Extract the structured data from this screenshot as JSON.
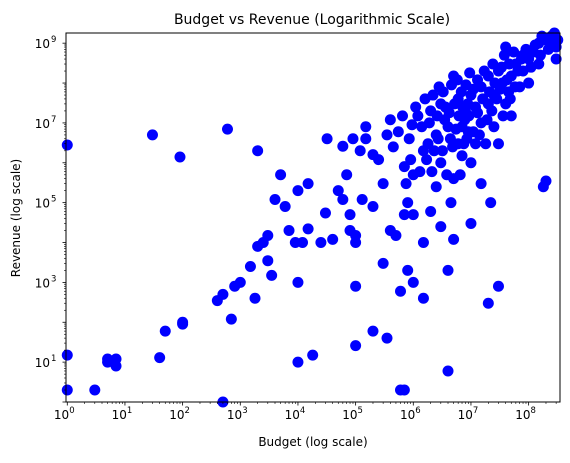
{
  "chart_data": {
    "type": "scatter",
    "title": "Budget vs Revenue (Logarithmic Scale)",
    "xlabel": "Budget (log scale)",
    "ylabel": "Revenue (log scale)",
    "xscale": "log",
    "yscale": "log",
    "xlim": [
      0.95,
      350000000
    ],
    "ylim": [
      1.0,
      1800000000
    ],
    "grid": false,
    "legend": "none",
    "marker_color": "#0000ff",
    "x_ticks": [
      {
        "base": "10",
        "exp": "0",
        "value": 1
      },
      {
        "base": "10",
        "exp": "1",
        "value": 10
      },
      {
        "base": "10",
        "exp": "2",
        "value": 100
      },
      {
        "base": "10",
        "exp": "3",
        "value": 1000
      },
      {
        "base": "10",
        "exp": "4",
        "value": 10000
      },
      {
        "base": "10",
        "exp": "5",
        "value": 100000
      },
      {
        "base": "10",
        "exp": "6",
        "value": 1000000
      },
      {
        "base": "10",
        "exp": "7",
        "value": 10000000
      },
      {
        "base": "10",
        "exp": "8",
        "value": 100000000
      }
    ],
    "y_ticks": [
      {
        "base": "10",
        "exp": "1",
        "value": 10
      },
      {
        "base": "10",
        "exp": "3",
        "value": 1000
      },
      {
        "base": "10",
        "exp": "5",
        "value": 100000
      },
      {
        "base": "10",
        "exp": "7",
        "value": 10000000
      },
      {
        "base": "10",
        "exp": "9",
        "value": 1000000000
      }
    ],
    "points": [
      [
        1,
        2800000.0
      ],
      [
        1,
        15
      ],
      [
        1,
        2
      ],
      [
        3,
        2
      ],
      [
        5,
        12
      ],
      [
        5,
        10
      ],
      [
        7,
        12
      ],
      [
        7,
        8
      ],
      [
        30,
        5000000.0
      ],
      [
        40,
        13
      ],
      [
        50,
        60
      ],
      [
        90,
        1400000.0
      ],
      [
        100,
        100
      ],
      [
        100,
        90
      ],
      [
        400,
        350
      ],
      [
        500,
        500
      ],
      [
        500,
        1
      ],
      [
        600,
        7000000.0
      ],
      [
        700,
        120
      ],
      [
        800,
        800
      ],
      [
        1000,
        1000
      ],
      [
        1500,
        2500
      ],
      [
        1800,
        400
      ],
      [
        2000,
        8000
      ],
      [
        2000,
        2000000.0
      ],
      [
        2500,
        10000.0
      ],
      [
        3000,
        15000.0
      ],
      [
        3000,
        3500
      ],
      [
        3500,
        1500
      ],
      [
        4000,
        120000.0
      ],
      [
        5000,
        500000.0
      ],
      [
        6000,
        80000.0
      ],
      [
        7000,
        20000.0
      ],
      [
        9000,
        10000.0
      ],
      [
        10000,
        1000
      ],
      [
        10000,
        10
      ],
      [
        10000,
        200000.0
      ],
      [
        12000,
        10000.0
      ],
      [
        15000,
        22000.0
      ],
      [
        15000,
        300000.0
      ],
      [
        18000,
        15
      ],
      [
        25000,
        10000.0
      ],
      [
        30000,
        55000.0
      ],
      [
        32000,
        4000000.0
      ],
      [
        40000,
        12000.0
      ],
      [
        50000,
        200000.0
      ],
      [
        60000,
        2600000.0
      ],
      [
        80000,
        50000.0
      ],
      [
        80000,
        20000.0
      ],
      [
        100000,
        15000.0
      ],
      [
        100000,
        10000.0
      ],
      [
        100000,
        800
      ],
      [
        100000,
        26
      ],
      [
        130000,
        120000.0
      ],
      [
        150000,
        4000000.0
      ],
      [
        150000,
        8000000.0
      ],
      [
        200000,
        80000.0
      ],
      [
        200000,
        60
      ],
      [
        200000,
        1600000.0
      ],
      [
        300000,
        3000
      ],
      [
        300000,
        300000.0
      ],
      [
        350000,
        40
      ],
      [
        400000,
        12000000.0
      ],
      [
        400000,
        20000.0
      ],
      [
        500000,
        15000.0
      ],
      [
        600000,
        600
      ],
      [
        600000,
        2
      ],
      [
        700000,
        2
      ],
      [
        700000,
        50000.0
      ],
      [
        700000,
        800000.0
      ],
      [
        800000,
        2000
      ],
      [
        800000,
        100000.0
      ],
      [
        900000,
        1200000.0
      ],
      [
        1000000,
        1000
      ],
      [
        1000000,
        50000.0
      ],
      [
        1000000,
        500000.0
      ],
      [
        1200000,
        15000000.0
      ],
      [
        1500000,
        400
      ],
      [
        1500000,
        10000.0
      ],
      [
        1500000,
        2000000.0
      ],
      [
        1800000,
        3000000.0
      ],
      [
        2000000,
        60000.0
      ],
      [
        2000000,
        20000000.0
      ],
      [
        2500000,
        5000000.0
      ],
      [
        2500000,
        250000.0
      ],
      [
        3000000,
        25000.0
      ],
      [
        3000000,
        1000000.0
      ],
      [
        3000000,
        30000000.0
      ],
      [
        3500000,
        12000000.0
      ],
      [
        4000000,
        6
      ],
      [
        4000000,
        2000
      ],
      [
        4000000,
        8000000.0
      ],
      [
        4500000,
        100000.0
      ],
      [
        5000000,
        12000.0
      ],
      [
        5000000,
        400000.0
      ],
      [
        5000000,
        150000000.0
      ],
      [
        6000000,
        3000000.0
      ],
      [
        6000000,
        40000000.0
      ],
      [
        7000000,
        8000000.0
      ],
      [
        7000000,
        1500000.0
      ],
      [
        8000000,
        20000000.0
      ],
      [
        9000000,
        6000000.0
      ],
      [
        10000000,
        1000000.0
      ],
      [
        10000000,
        50000000.0
      ],
      [
        10000000,
        30000.0
      ],
      [
        12000000,
        3000000.0
      ],
      [
        12000000,
        25000000.0
      ],
      [
        15000000,
        10000000.0
      ],
      [
        15000000,
        80000000.0
      ],
      [
        15000000,
        300000.0
      ],
      [
        18000000,
        3000000.0
      ],
      [
        20000000,
        30000000.0
      ],
      [
        20000000,
        150000000.0
      ],
      [
        20000000,
        300
      ],
      [
        22000000,
        100000.0
      ],
      [
        25000000,
        8000000.0
      ],
      [
        25000000,
        50000000.0
      ],
      [
        30000000,
        3000000.0
      ],
      [
        30000000,
        200000000.0
      ],
      [
        30000000,
        800
      ],
      [
        35000000,
        100000000.0
      ],
      [
        40000000,
        30000000.0
      ],
      [
        40000000,
        800000000.0
      ],
      [
        45000000,
        60000000.0
      ],
      [
        50000000,
        150000000.0
      ],
      [
        50000000,
        15000000.0
      ],
      [
        60000000,
        300000000.0
      ],
      [
        70000000,
        80000000.0
      ],
      [
        80000000,
        200000000.0
      ],
      [
        80000000,
        500000000.0
      ],
      [
        100000000,
        400000000.0
      ],
      [
        100000000,
        100000000.0
      ],
      [
        120000000,
        600000000.0
      ],
      [
        150000000,
        1000000000.0
      ],
      [
        150000000,
        300000000.0
      ],
      [
        180000000,
        250000.0
      ],
      [
        200000000,
        1200000000.0
      ],
      [
        200000000,
        350000.0
      ],
      [
        250000000,
        1500000000.0
      ],
      [
        300000000,
        400000000.0
      ],
      [
        300000000,
        800000000.0
      ],
      [
        60000,
        120000.0
      ],
      [
        70000,
        500000.0
      ],
      [
        90000,
        4000000.0
      ],
      [
        120000,
        2000000.0
      ],
      [
        250000,
        1200000.0
      ],
      [
        350000,
        5000000.0
      ],
      [
        450000,
        2500000.0
      ],
      [
        550000,
        6000000.0
      ],
      [
        650000,
        15000000.0
      ],
      [
        750000,
        300000.0
      ],
      [
        850000,
        4000000.0
      ],
      [
        950000,
        9000000.0
      ],
      [
        1100000,
        25000000.0
      ],
      [
        1300000,
        600000.0
      ],
      [
        1400000,
        8000000.0
      ],
      [
        1600000,
        40000000.0
      ],
      [
        1700000,
        1200000.0
      ],
      [
        1900000,
        10000000.0
      ],
      [
        2100000,
        600000.0
      ],
      [
        2200000,
        50000000.0
      ],
      [
        2300000,
        2000000.0
      ],
      [
        2600000,
        15000000.0
      ],
      [
        2700000,
        4000000.0
      ],
      [
        2800000,
        80000000.0
      ],
      [
        3200000,
        2000000.0
      ],
      [
        3300000,
        60000000.0
      ],
      [
        3600000,
        25000000.0
      ],
      [
        3800000,
        500000.0
      ],
      [
        4200000,
        18000000.0
      ],
      [
        4400000,
        4000000.0
      ],
      [
        4600000,
        90000000.0
      ],
      [
        4800000,
        2500000.0
      ],
      [
        5200000,
        30000000.0
      ],
      [
        5500000,
        7000000.0
      ],
      [
        5800000,
        120000000.0
      ],
      [
        6200000,
        15000000.0
      ],
      [
        6500000,
        500000.0
      ],
      [
        6800000,
        60000000.0
      ],
      [
        7200000,
        25000000.0
      ],
      [
        7500000,
        3000000.0
      ],
      [
        7800000,
        12000000.0
      ],
      [
        8200000,
        90000000.0
      ],
      [
        8500000,
        4000000.0
      ],
      [
        8800000,
        30000000.0
      ],
      [
        9200000,
        15000000.0
      ],
      [
        9500000,
        180000000.0
      ],
      [
        11000000,
        6000000.0
      ],
      [
        11000000,
        70000000.0
      ],
      [
        13000000,
        18000000.0
      ],
      [
        13000000,
        120000000.0
      ],
      [
        14000000,
        5000000.0
      ],
      [
        16000000,
        40000000.0
      ],
      [
        17000000,
        200000000.0
      ],
      [
        19000000,
        12000000.0
      ],
      [
        21000000,
        60000000.0
      ],
      [
        23000000,
        20000000.0
      ],
      [
        24000000,
        300000000.0
      ],
      [
        26000000,
        100000000.0
      ],
      [
        28000000,
        40000000.0
      ],
      [
        32000000,
        70000000.0
      ],
      [
        34000000,
        250000000.0
      ],
      [
        36000000,
        15000000.0
      ],
      [
        38000000,
        500000000.0
      ],
      [
        42000000,
        120000000.0
      ],
      [
        46000000,
        300000000.0
      ],
      [
        48000000,
        40000000.0
      ],
      [
        55000000,
        600000000.0
      ],
      [
        58000000,
        80000000.0
      ],
      [
        65000000,
        200000000.0
      ],
      [
        75000000,
        400000000.0
      ],
      [
        90000000,
        700000000.0
      ],
      [
        110000000,
        250000000.0
      ],
      [
        130000000,
        900000000.0
      ],
      [
        160000000,
        500000000.0
      ],
      [
        170000000,
        1500000000.0
      ],
      [
        220000000,
        700000000.0
      ],
      [
        260000000,
        1000000000.0
      ],
      [
        280000000,
        1800000000.0
      ],
      [
        320000000,
        1200000000.0
      ]
    ]
  }
}
